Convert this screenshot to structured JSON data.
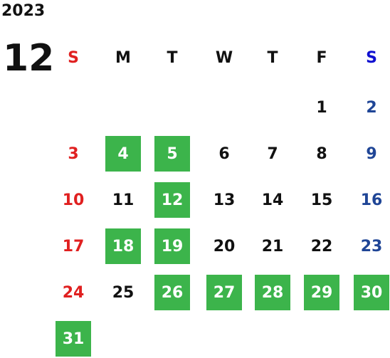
{
  "year": "2023",
  "month": "12",
  "weekdays": [
    "S",
    "M",
    "T",
    "W",
    "T",
    "F",
    "S"
  ],
  "weeks": [
    [
      null,
      null,
      null,
      null,
      null,
      1,
      2
    ],
    [
      3,
      4,
      5,
      6,
      7,
      8,
      9
    ],
    [
      10,
      11,
      12,
      13,
      14,
      15,
      16
    ],
    [
      17,
      18,
      19,
      20,
      21,
      22,
      23
    ],
    [
      24,
      25,
      26,
      27,
      28,
      29,
      30
    ],
    [
      31,
      null,
      null,
      null,
      null,
      null,
      null
    ]
  ],
  "highlighted_days": [
    4,
    5,
    12,
    18,
    19,
    26,
    27,
    28,
    29,
    30,
    31
  ],
  "colors": {
    "sunday": "#e02020",
    "saturday_header": "#1010d0",
    "saturday": "#1f4596",
    "highlight": "#3cb44b"
  }
}
